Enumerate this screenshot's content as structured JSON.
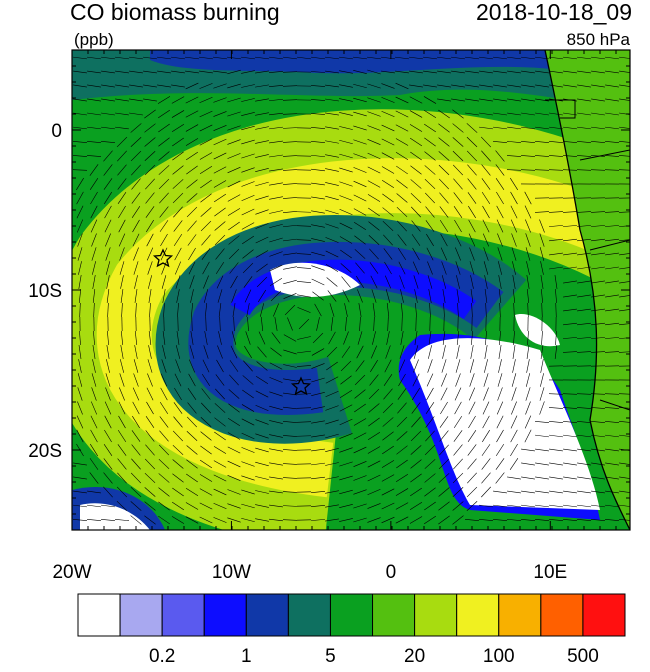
{
  "header": {
    "title": "CO biomass burning",
    "date": "2018-10-18_09",
    "units": "(ppb)",
    "level": "850 hPa"
  },
  "map": {
    "lon_ticks": [
      {
        "value": -20,
        "label": "20W"
      },
      {
        "value": -10,
        "label": "10W"
      },
      {
        "value": 0,
        "label": "0"
      },
      {
        "value": 10,
        "label": "10E"
      }
    ],
    "lat_ticks": [
      {
        "value": 0,
        "label": "0"
      },
      {
        "value": -10,
        "label": "10S"
      },
      {
        "value": -20,
        "label": "20S"
      }
    ],
    "lon_range": [
      -20,
      15
    ],
    "lat_range": [
      -25,
      5
    ]
  },
  "colorbar": {
    "colors": [
      "#ffffff",
      "#a8a8f0",
      "#5a5aef",
      "#0d0dff",
      "#1038a8",
      "#0e7060",
      "#0aa020",
      "#54c010",
      "#a8dc10",
      "#f0f020",
      "#f8b000",
      "#ff6000",
      "#ff1010"
    ],
    "labels": [
      "0.2",
      "1",
      "5",
      "20",
      "100",
      "500"
    ]
  }
}
